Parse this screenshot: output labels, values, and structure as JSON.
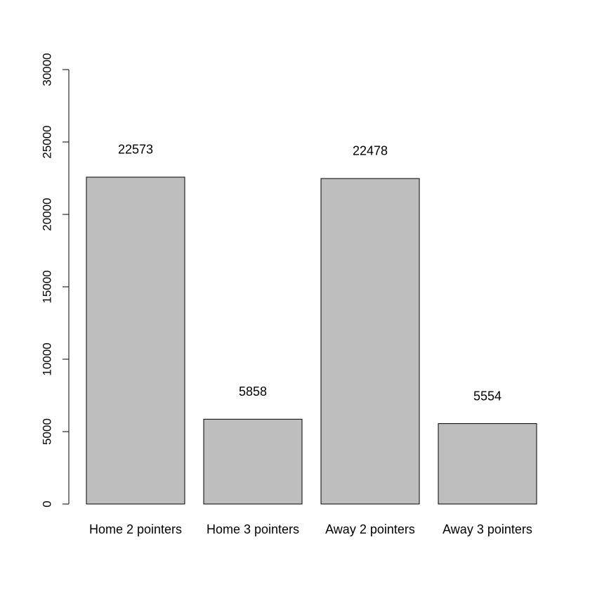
{
  "chart_data": {
    "type": "bar",
    "title": "",
    "xlabel": "",
    "ylabel": "",
    "categories": [
      "Home 2 pointers",
      "Home 3 pointers",
      "Away 2 pointers",
      "Away 3 pointers"
    ],
    "values": [
      22573,
      5858,
      22478,
      5554
    ],
    "data_labels": [
      "22573",
      "5858",
      "22478",
      "5554"
    ],
    "ylim": [
      0,
      30000
    ],
    "yticks": [
      0,
      5000,
      10000,
      15000,
      20000,
      25000,
      30000
    ],
    "ytick_labels": [
      "0",
      "5000",
      "10000",
      "15000",
      "20000",
      "25000",
      "30000"
    ],
    "grid": false,
    "legend": "none",
    "colors": {
      "bar_fill": "#bebebe",
      "bar_stroke": "#000000",
      "axis": "#000000"
    }
  }
}
